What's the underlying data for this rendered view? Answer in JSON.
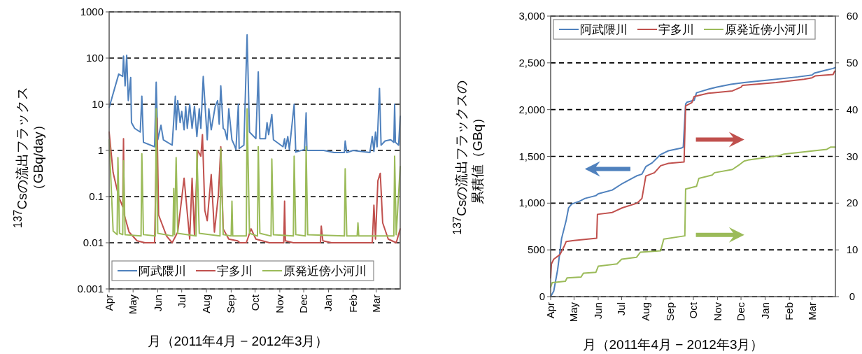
{
  "chart_data": [
    {
      "type": "line",
      "log": true,
      "ylabel": "$^{137}$Csの流出フラックス（GBq/day）",
      "xlabel": "月（2011年4月 − 2012年3月）",
      "xlim": [
        "2011-04-01",
        "2012-03-31"
      ],
      "ylim": [
        0.001,
        1000
      ],
      "yticks": [
        0.001,
        0.01,
        0.1,
        1,
        10,
        100,
        1000
      ],
      "xticks": [
        {
          "value": "2011-04-01",
          "label": "Apr"
        },
        {
          "value": "2011-05-01",
          "label": "May"
        },
        {
          "value": "2011-06-01",
          "label": "Jun"
        },
        {
          "value": "2011-07-01",
          "label": "Jul"
        },
        {
          "value": "2011-08-01",
          "label": "Aug"
        },
        {
          "value": "2011-09-01",
          "label": "Sep"
        },
        {
          "value": "2011-10-01",
          "label": "Oct"
        },
        {
          "value": "2011-11-01",
          "label": "Nov"
        },
        {
          "value": "2011-12-01",
          "label": "Dec"
        },
        {
          "value": "2012-01-01",
          "label": "Jan"
        },
        {
          "value": "2012-02-01",
          "label": "Feb"
        },
        {
          "value": "2012-03-01",
          "label": "Mar"
        }
      ],
      "grid": "y",
      "legend": "bottom",
      "series": [
        {
          "name": "阿武隈川",
          "color": "#4f81bd",
          "x": [
            "2011-04-01",
            "2011-04-13",
            "2011-04-18",
            "2011-04-19",
            "2011-04-21",
            "2011-04-23",
            "2011-04-25",
            "2011-04-28",
            "2011-04-29",
            "2011-05-03",
            "2011-05-10",
            "2011-05-12",
            "2011-05-14",
            "2011-05-28",
            "2011-05-30",
            "2011-06-01",
            "2011-06-05",
            "2011-06-08",
            "2011-06-19",
            "2011-06-23",
            "2011-06-24",
            "2011-06-26",
            "2011-06-29",
            "2011-07-01",
            "2011-07-04",
            "2011-07-06",
            "2011-07-08",
            "2011-07-11",
            "2011-07-14",
            "2011-07-17",
            "2011-07-20",
            "2011-07-23",
            "2011-07-25",
            "2011-07-28",
            "2011-08-02",
            "2011-08-04",
            "2011-08-07",
            "2011-08-12",
            "2011-08-15",
            "2011-08-17",
            "2011-08-19",
            "2011-08-22",
            "2011-08-24",
            "2011-08-27",
            "2011-08-29",
            "2011-09-02",
            "2011-09-05",
            "2011-09-07",
            "2011-09-10",
            "2011-09-11",
            "2011-09-17",
            "2011-09-21",
            "2011-09-24",
            "2011-10-02",
            "2011-10-05",
            "2011-10-07",
            "2011-10-14",
            "2011-10-16",
            "2011-10-18",
            "2011-10-22",
            "2011-10-24",
            "2011-11-05",
            "2011-11-07",
            "2011-11-08",
            "2011-11-11",
            "2011-11-13",
            "2011-11-19",
            "2011-11-21",
            "2011-12-02",
            "2011-12-04",
            "2011-12-05",
            "2011-12-26",
            "2012-01-08",
            "2012-01-21",
            "2012-01-22",
            "2012-01-24",
            "2012-02-01",
            "2012-02-22",
            "2012-02-25",
            "2012-02-27",
            "2012-02-29",
            "2012-03-02",
            "2012-03-05",
            "2012-03-07",
            "2012-03-12",
            "2012-03-19",
            "2012-03-23",
            "2012-03-24",
            "2012-03-25",
            "2012-03-29",
            "2012-03-31"
          ],
          "values": [
            8.5,
            45,
            40,
            110,
            25,
            115,
            12,
            38,
            4,
            3,
            2.5,
            15,
            1.5,
            1.2,
            30,
            1.7,
            3.5,
            1.7,
            1.3,
            15,
            2.8,
            12,
            4,
            7,
            2.8,
            9,
            3,
            10,
            3,
            9,
            2,
            8,
            3,
            40,
            1.7,
            8,
            2.8,
            9,
            12,
            3.7,
            25,
            3,
            2.8,
            1.7,
            8,
            1.7,
            1.3,
            1.05,
            10,
            1.1,
            1.3,
            320,
            2.5,
            1.8,
            50,
            1.8,
            1.8,
            4,
            2.2,
            6,
            1.7,
            1.2,
            1.8,
            1.1,
            2,
            1.05,
            10,
            0.92,
            1.05,
            6.5,
            1,
            1,
            0.9,
            0.9,
            1.6,
            0.9,
            1,
            0.9,
            2,
            0.95,
            2.5,
            1.2,
            22,
            1.3,
            1.6,
            1.7,
            1.5,
            10,
            1.5,
            1.3,
            5.5
          ]
        },
        {
          "name": "宇多川",
          "color": "#c0504d",
          "x": [
            "2011-04-01",
            "2011-04-06",
            "2011-04-13",
            "2011-04-18",
            "2011-04-19",
            "2011-04-20",
            "2011-04-26",
            "2011-05-06",
            "2011-05-16",
            "2011-05-28",
            "2011-05-31",
            "2011-06-02",
            "2011-06-12",
            "2011-06-19",
            "2011-06-26",
            "2011-07-04",
            "2011-07-11",
            "2011-07-14",
            "2011-07-17",
            "2011-07-21",
            "2011-07-25",
            "2011-07-27",
            "2011-07-30",
            "2011-08-02",
            "2011-08-07",
            "2011-08-11",
            "2011-08-16",
            "2011-08-19",
            "2011-08-22",
            "2011-08-29",
            "2011-09-09",
            "2011-09-12",
            "2011-09-20",
            "2011-09-26",
            "2011-10-02",
            "2011-10-19",
            "2011-11-06",
            "2011-11-07",
            "2011-11-08",
            "2011-11-18",
            "2011-12-22",
            "2011-12-23",
            "2011-12-25",
            "2012-01-05",
            "2012-02-25",
            "2012-02-27",
            "2012-02-29",
            "2012-03-03",
            "2012-03-06",
            "2012-03-09",
            "2012-03-16",
            "2012-03-26",
            "2012-03-31"
          ],
          "values": [
            2.5,
            0.33,
            0.1,
            0.06,
            1.8,
            0.04,
            0.017,
            0.011,
            0.01,
            0.01,
            5,
            0.04,
            0.014,
            0.01,
            0.017,
            0.25,
            0.012,
            0.25,
            0.015,
            1,
            0.75,
            2.2,
            0.05,
            0.03,
            0.3,
            0.017,
            0.11,
            1.2,
            0.02,
            0.012,
            0.011,
            0.01,
            0.01,
            0.02,
            0.012,
            0.01,
            0.01,
            0.08,
            0.011,
            0.01,
            0.01,
            0.023,
            0.011,
            0.01,
            0.01,
            0.065,
            0.012,
            0.22,
            0.32,
            0.027,
            0.012,
            0.01,
            0.02
          ]
        },
        {
          "name": "原発近傍小河川",
          "color": "#9bbb59",
          "x": [
            "2011-04-01",
            "2011-04-06",
            "2011-04-11",
            "2011-04-12",
            "2011-04-14",
            "2011-04-18",
            "2011-04-19",
            "2011-04-21",
            "2011-05-11",
            "2011-05-12",
            "2011-05-14",
            "2011-05-29",
            "2011-05-30",
            "2011-06-01",
            "2011-06-20",
            "2011-06-21",
            "2011-06-22",
            "2011-06-24",
            "2011-06-26",
            "2011-07-19",
            "2011-07-20",
            "2011-07-23",
            "2011-08-18",
            "2011-08-19",
            "2011-08-22",
            "2011-09-01",
            "2011-09-02",
            "2011-09-03",
            "2011-09-20",
            "2011-09-21",
            "2011-09-24",
            "2011-10-04",
            "2011-10-05",
            "2011-10-07",
            "2011-10-21",
            "2011-10-22",
            "2011-10-24",
            "2011-11-18",
            "2011-11-19",
            "2011-11-21",
            "2011-12-03",
            "2011-12-04",
            "2011-12-06",
            "2012-01-21",
            "2012-01-22",
            "2012-01-24",
            "2012-02-06",
            "2012-02-07",
            "2012-02-08",
            "2012-03-23",
            "2012-03-24",
            "2012-03-26",
            "2012-03-31"
          ],
          "values": [
            1.7,
            0.018,
            0.015,
            0.7,
            0.016,
            0.015,
            0.6,
            0.015,
            0.014,
            0.85,
            0.015,
            0.014,
            8,
            0.016,
            0.014,
            0.15,
            0.015,
            0.7,
            0.016,
            0.014,
            1,
            0.016,
            0.014,
            1.1,
            0.015,
            0.014,
            0.08,
            0.014,
            0.014,
            8,
            0.016,
            0.014,
            1.2,
            0.016,
            0.014,
            0.65,
            0.015,
            0.014,
            0.75,
            0.015,
            0.014,
            1.2,
            0.015,
            0.014,
            0.4,
            0.014,
            0.014,
            0.027,
            0.014,
            0.014,
            0.75,
            0.015,
            0.45
          ]
        }
      ]
    },
    {
      "type": "line",
      "ylabel": "$^{137}$Csの流出フラックスの累積値（GBq）",
      "xlabel": "月（2011年4月 − 2012年3月）",
      "xlim": [
        "2011-04-01",
        "2012-03-31"
      ],
      "ylim": [
        0,
        3000
      ],
      "yticks": [
        0,
        500,
        {
          "value": 1000,
          "label": "1,000"
        },
        {
          "value": 1500,
          "label": "1,500"
        },
        {
          "value": 2000,
          "label": "2,000"
        },
        {
          "value": 2500,
          "label": "2,500"
        },
        {
          "value": 3000,
          "label": "3,000"
        }
      ],
      "y2lim": [
        0,
        60
      ],
      "y2ticks": [
        0,
        10,
        20,
        30,
        40,
        50,
        60
      ],
      "xticks": [
        {
          "value": "2011-04-01",
          "label": "Apr"
        },
        {
          "value": "2011-05-01",
          "label": "May"
        },
        {
          "value": "2011-06-01",
          "label": "Jun"
        },
        {
          "value": "2011-07-01",
          "label": "Jul"
        },
        {
          "value": "2011-08-01",
          "label": "Aug"
        },
        {
          "value": "2011-09-01",
          "label": "Sep"
        },
        {
          "value": "2011-10-01",
          "label": "Oct"
        },
        {
          "value": "2011-11-01",
          "label": "Nov"
        },
        {
          "value": "2011-12-01",
          "label": "Dec"
        },
        {
          "value": "2012-01-01",
          "label": "Jan"
        },
        {
          "value": "2012-02-01",
          "label": "Feb"
        },
        {
          "value": "2012-03-01",
          "label": "Mar"
        }
      ],
      "grid": "y",
      "legend": "top",
      "series": [
        {
          "name": "阿武隈川",
          "color": "#4f81bd",
          "x": [
            "2011-04-01",
            "2011-04-05",
            "2011-04-10",
            "2011-04-15",
            "2011-04-21",
            "2011-04-24",
            "2011-04-28",
            "2011-05-08",
            "2011-05-15",
            "2011-05-29",
            "2011-06-01",
            "2011-06-19",
            "2011-07-02",
            "2011-07-20",
            "2011-07-27",
            "2011-08-01",
            "2011-08-09",
            "2011-08-20",
            "2011-08-30",
            "2011-09-16",
            "2011-09-18",
            "2011-09-21",
            "2011-09-23",
            "2011-10-02",
            "2011-10-05",
            "2011-10-21",
            "2011-10-31",
            "2011-11-18",
            "2011-12-05",
            "2012-01-09",
            "2012-02-12",
            "2012-03-01",
            "2012-03-04",
            "2012-03-18",
            "2012-03-28",
            "2012-03-31"
          ],
          "values": [
            0,
            60,
            290,
            620,
            820,
            950,
            990,
            1020,
            1050,
            1080,
            1100,
            1140,
            1210,
            1290,
            1310,
            1390,
            1430,
            1520,
            1560,
            1590,
            1600,
            2060,
            2080,
            2100,
            2180,
            2220,
            2240,
            2270,
            2290,
            2320,
            2350,
            2370,
            2390,
            2420,
            2440,
            2450
          ]
        },
        {
          "name": "宇多川",
          "color": "#c0504d",
          "axis": "y2",
          "x": [
            "2011-04-01",
            "2011-04-02",
            "2011-04-05",
            "2011-04-13",
            "2011-04-19",
            "2011-04-21",
            "2011-05-01",
            "2011-05-30",
            "2011-05-31",
            "2011-06-19",
            "2011-07-02",
            "2011-07-21",
            "2011-07-27",
            "2011-08-01",
            "2011-08-12",
            "2011-08-20",
            "2011-08-30",
            "2011-09-19",
            "2011-09-21",
            "2011-09-29",
            "2011-10-02",
            "2011-10-20",
            "2011-11-20",
            "2011-12-01",
            "2011-12-03",
            "2012-01-15",
            "2012-02-20",
            "2012-03-01",
            "2012-03-05",
            "2012-03-28",
            "2012-03-30",
            "2012-03-31"
          ],
          "values": [
            4,
            7,
            8,
            9,
            11,
            11.8,
            12,
            12.5,
            17.6,
            18,
            19,
            20,
            21,
            25.8,
            26.5,
            28,
            28.5,
            28.8,
            40.8,
            41.5,
            42.8,
            43.5,
            44,
            44.8,
            45.2,
            45.8,
            46.5,
            46.8,
            47.2,
            47.5,
            48.2,
            48.2
          ]
        },
        {
          "name": "原発近傍小河川",
          "color": "#9bbb59",
          "axis": "y2",
          "x": [
            "2011-04-01",
            "2011-04-03",
            "2011-04-20",
            "2011-04-22",
            "2011-05-10",
            "2011-05-13",
            "2011-05-29",
            "2011-06-01",
            "2011-06-25",
            "2011-07-01",
            "2011-07-20",
            "2011-07-25",
            "2011-08-20",
            "2011-08-24",
            "2011-09-20",
            "2011-09-21",
            "2011-10-05",
            "2011-10-08",
            "2011-10-25",
            "2011-10-28",
            "2011-11-20",
            "2011-11-28",
            "2011-12-05",
            "2011-12-10",
            "2012-01-20",
            "2012-01-25",
            "2012-03-20",
            "2012-03-25",
            "2012-03-31"
          ],
          "values": [
            2,
            3,
            3.3,
            4,
            4.2,
            5,
            5.2,
            6.5,
            7,
            8,
            8.4,
            9.5,
            9.8,
            12.3,
            13,
            23,
            23.6,
            25.3,
            26,
            26.5,
            27.2,
            28.1,
            29,
            29.2,
            30.2,
            30.5,
            31.5,
            32,
            32
          ]
        }
      ]
    }
  ]
}
